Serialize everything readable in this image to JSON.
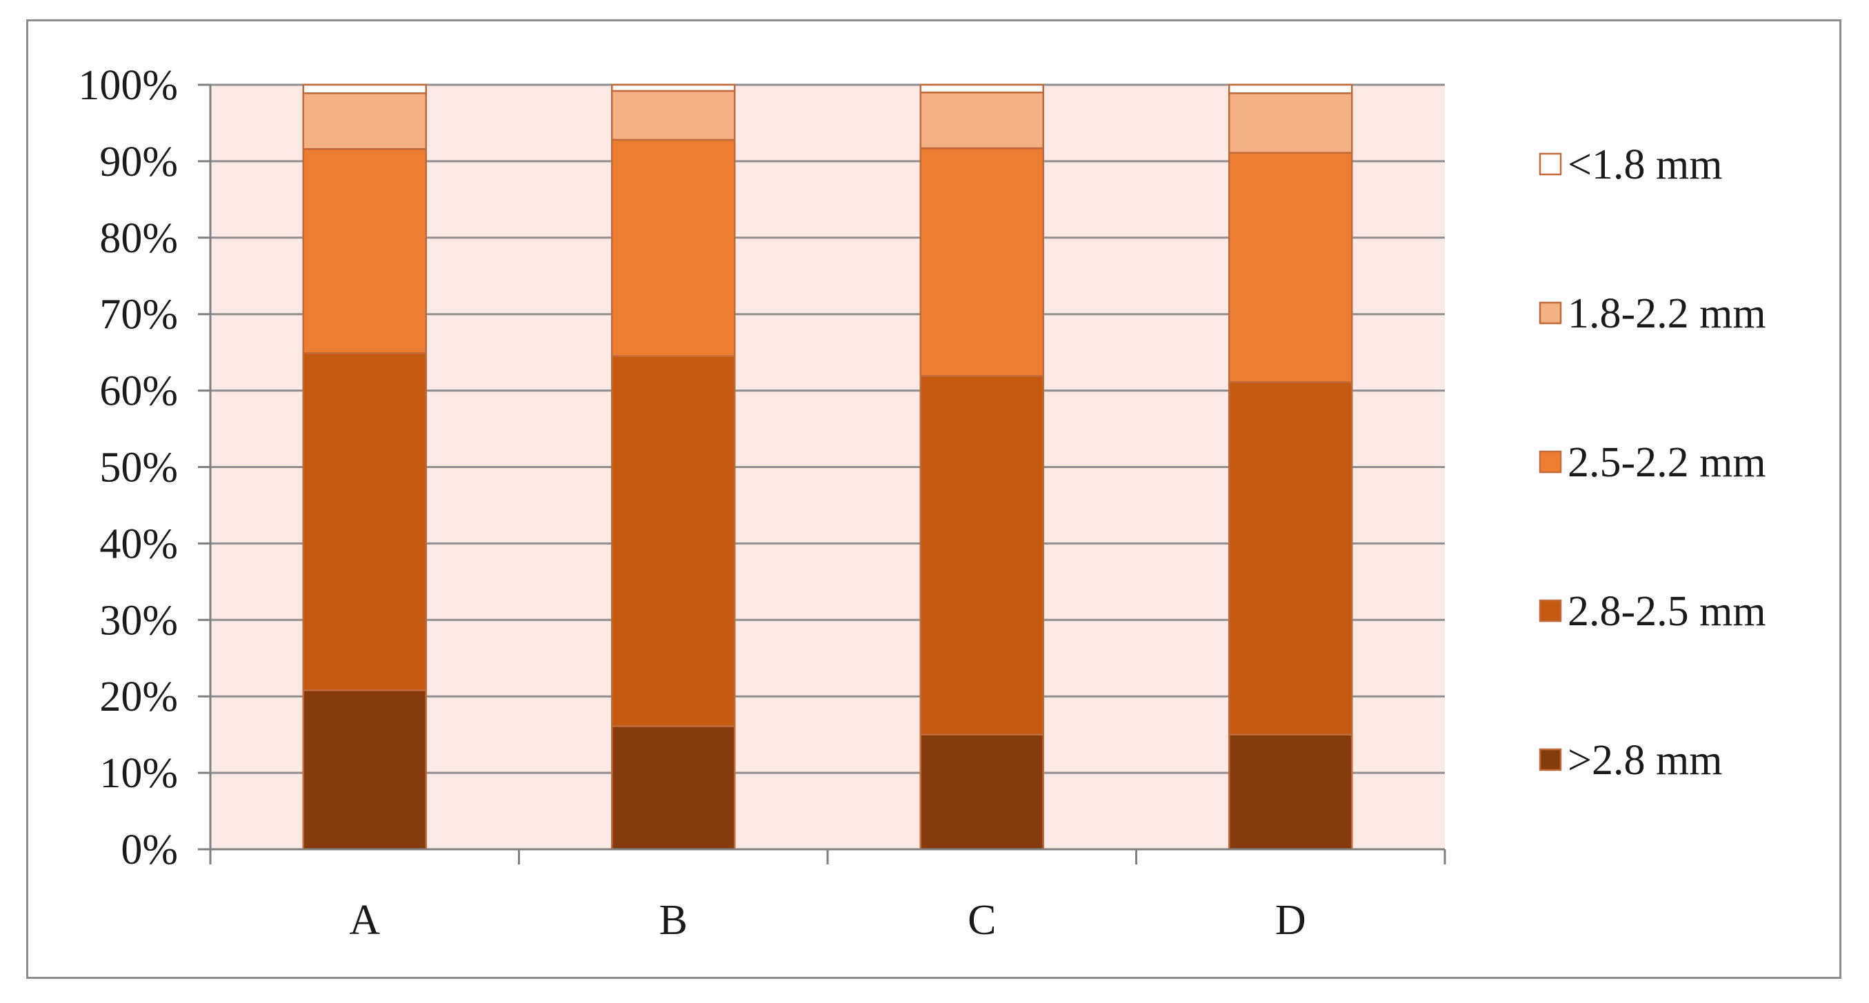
{
  "chart_data": {
    "type": "bar",
    "stacked": true,
    "percent_stacked": true,
    "categories": [
      "A",
      "B",
      "C",
      "D"
    ],
    "series": [
      {
        "name": ">2.8 mm",
        "color": "#843c0c",
        "values": [
          20.8,
          16.1,
          15.0,
          15.0
        ]
      },
      {
        "name": "2.8-2.5 mm",
        "color": "#c55a11",
        "values": [
          44.1,
          48.4,
          46.9,
          46.1
        ]
      },
      {
        "name": "2.5-2.2 mm",
        "color": "#ed7d31",
        "values": [
          26.7,
          28.3,
          29.8,
          30.0
        ]
      },
      {
        "name": "1.8-2.2 mm",
        "color": "#f4b183",
        "values": [
          7.3,
          6.4,
          7.3,
          7.8
        ]
      },
      {
        "name": "<1.8 mm",
        "color": "#ffffff",
        "values": [
          1.1,
          0.8,
          1.0,
          1.1
        ]
      }
    ],
    "y_ticks": [
      "0%",
      "10%",
      "20%",
      "30%",
      "40%",
      "50%",
      "60%",
      "70%",
      "80%",
      "90%",
      "100%"
    ],
    "ylim": [
      0,
      100
    ],
    "grid": true,
    "legend_position": "right",
    "plot_background": "#fbe9e5",
    "title": "",
    "xlabel": "",
    "ylabel": ""
  }
}
